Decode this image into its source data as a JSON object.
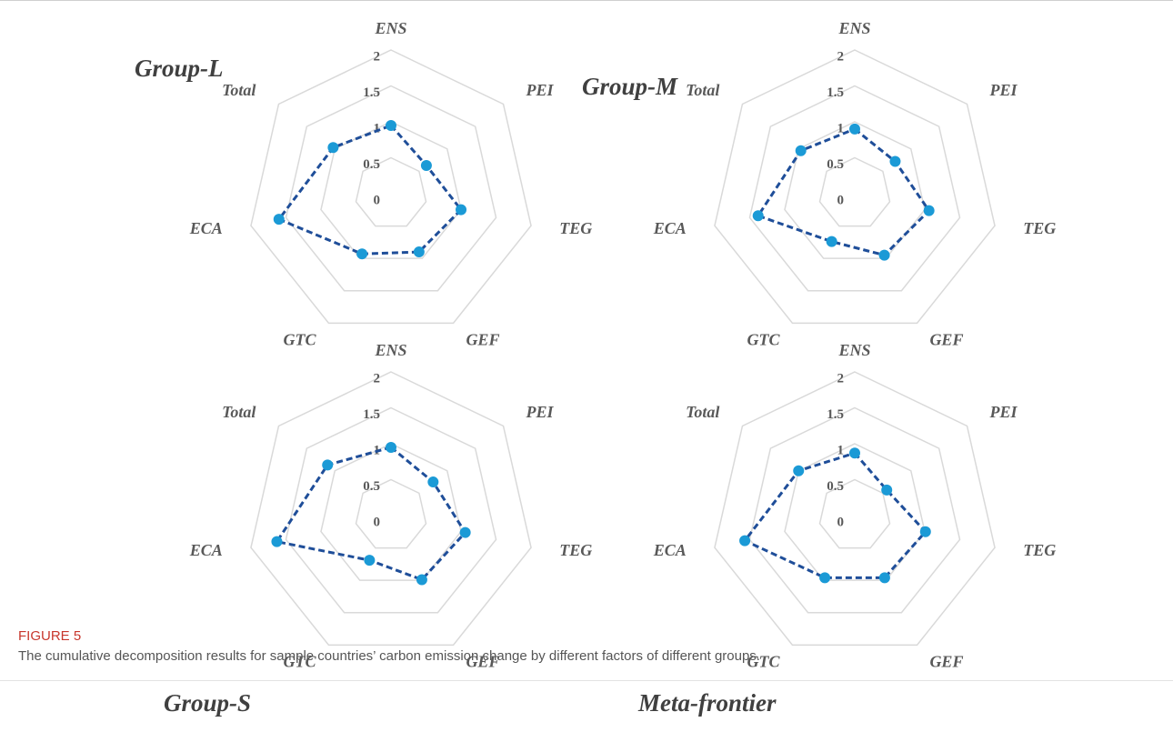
{
  "figure": {
    "label": "FIGURE 5",
    "caption": "The cumulative decomposition results for sample countries’ carbon emission change by different factors of different groups."
  },
  "chart_data": [
    {
      "type": "radar",
      "title": "Group-L",
      "categories": [
        "ENS",
        "PEI",
        "TEG",
        "GEF",
        "GTC",
        "ECA",
        "Total"
      ],
      "values": [
        0.95,
        0.63,
        1.0,
        0.9,
        0.93,
        1.6,
        1.03
      ],
      "line_color": "#1f4e99",
      "marker_color": "#1b9ad6",
      "rlim": [
        0,
        2
      ],
      "rticks": [
        0,
        0.5,
        1,
        1.5,
        2
      ],
      "grid": true
    },
    {
      "type": "radar",
      "title": "Group-M",
      "categories": [
        "ENS",
        "PEI",
        "TEG",
        "GEF",
        "GTC",
        "ECA",
        "Total"
      ],
      "values": [
        0.9,
        0.72,
        1.06,
        0.95,
        0.74,
        1.38,
        0.96
      ],
      "line_color": "#1f4e99",
      "marker_color": "#1b9ad6",
      "rlim": [
        0,
        2
      ],
      "rticks": [
        0,
        0.5,
        1,
        1.5,
        2
      ],
      "grid": true
    },
    {
      "type": "radar",
      "title": "Group-S",
      "categories": [
        "ENS",
        "PEI",
        "TEG",
        "GEF",
        "GTC",
        "ECA",
        "Total"
      ],
      "values": [
        0.95,
        0.75,
        1.06,
        0.99,
        0.69,
        1.63,
        1.13
      ],
      "line_color": "#1f4e99",
      "marker_color": "#1b9ad6",
      "rlim": [
        0,
        2
      ],
      "rticks": [
        0,
        0.5,
        1,
        1.5,
        2
      ],
      "grid": true
    },
    {
      "type": "radar",
      "title": "Meta-frontier",
      "categories": [
        "ENS",
        "PEI",
        "TEG",
        "GEF",
        "GTC",
        "ECA",
        "Total"
      ],
      "values": [
        0.87,
        0.57,
        1.01,
        0.96,
        0.96,
        1.57,
        1.0
      ],
      "line_color": "#1f4e99",
      "marker_color": "#1b9ad6",
      "rlim": [
        0,
        2
      ],
      "rticks": [
        0,
        0.5,
        1,
        1.5,
        2
      ],
      "grid": true
    }
  ]
}
